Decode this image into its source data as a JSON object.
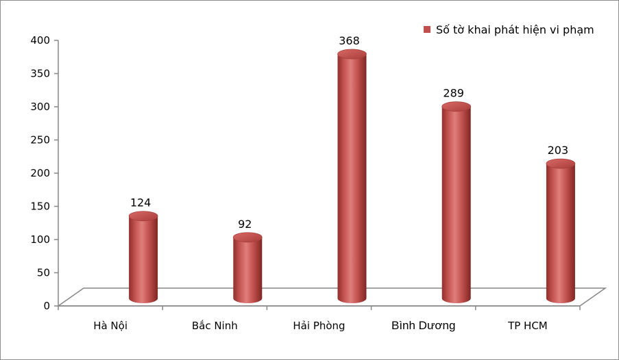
{
  "chart_data": {
    "type": "bar",
    "style": "3d-cylinder",
    "categories": [
      "Hà Nội",
      "Bắc Ninh",
      "Hải Phòng",
      "Bình Dương",
      "TP HCM"
    ],
    "series": [
      {
        "name": "Số tờ khai phát hiện vi phạm",
        "values": [
          124,
          92,
          368,
          289,
          203
        ]
      }
    ],
    "title": "",
    "xlabel": "",
    "ylabel": "",
    "ylim": [
      0,
      400
    ],
    "yticks": [
      0,
      50,
      100,
      150,
      200,
      250,
      300,
      350,
      400
    ],
    "grid": false,
    "legend": "top-right",
    "colors": {
      "bar": "#c0504d",
      "bar_dark": "#8b2a28",
      "bar_light": "#e07a77",
      "axis": "#868686"
    }
  }
}
